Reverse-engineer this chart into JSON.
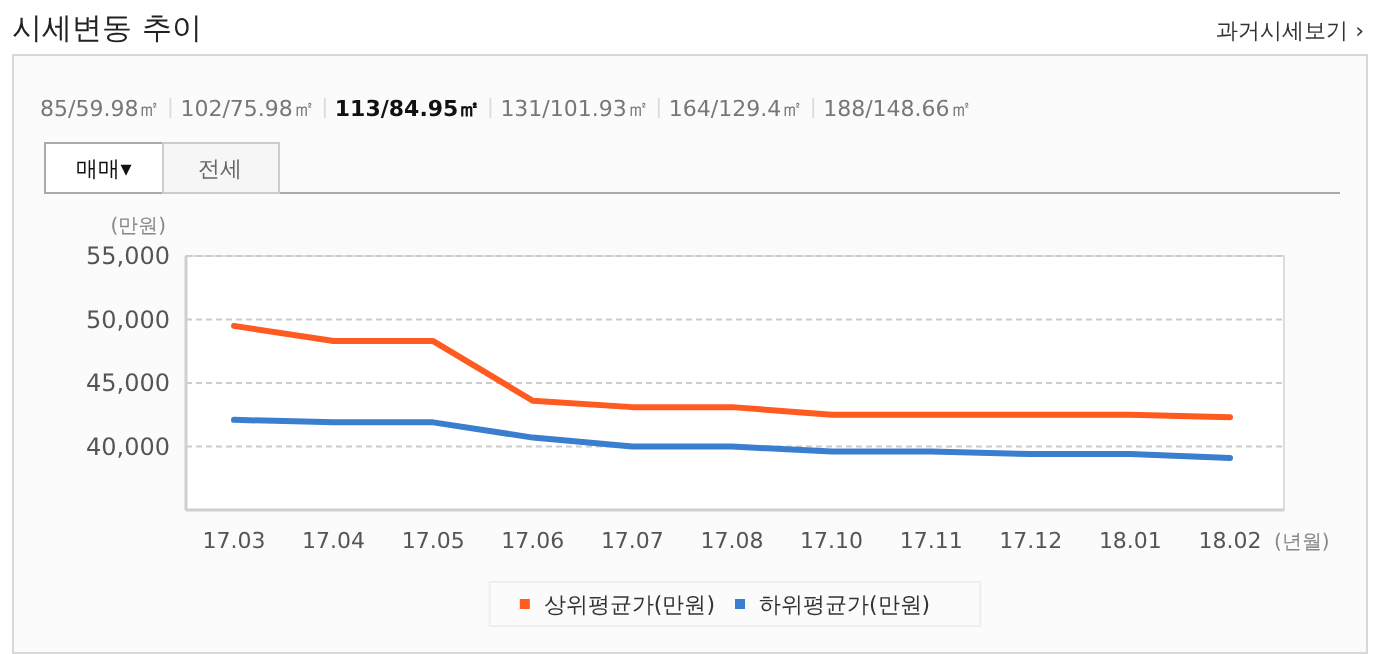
{
  "chart_data": {
    "type": "line",
    "title": "시세변동 추이",
    "ylabel": "(만원)",
    "xlabel": "(년월)",
    "annotations": [
      "과거시세보기 ›",
      "85/59.98㎡",
      "102/75.98㎡",
      "113/84.95㎡",
      "131/101.93㎡",
      "164/129.4㎡",
      "188/148.66㎡",
      "매매▾",
      "전세"
    ],
    "categories": [
      "17.03",
      "17.04",
      "17.05",
      "17.06",
      "17.07",
      "17.08",
      "17.10",
      "17.11",
      "17.12",
      "18.01",
      "18.02"
    ],
    "series": [
      {
        "name": "상위평균가(만원)",
        "color": "#ff5a1f",
        "values": [
          49500,
          48300,
          48300,
          43600,
          43100,
          43100,
          42500,
          42500,
          42500,
          42500,
          42300
        ]
      },
      {
        "name": "하위평균가(만원)",
        "color": "#3a7fcf",
        "values": [
          42100,
          41900,
          41900,
          40700,
          40000,
          40000,
          39600,
          39600,
          39400,
          39400,
          39100
        ]
      }
    ],
    "ylim": [
      35000,
      55000
    ],
    "yticks": [
      {
        "value": 40000,
        "label": "40,000"
      },
      {
        "value": 45000,
        "label": "45,000"
      },
      {
        "value": 50000,
        "label": "50,000"
      },
      {
        "value": 55000,
        "label": "55,000"
      }
    ],
    "grid": "y",
    "legend": "bottom",
    "marker": "none",
    "line_style": "solid"
  }
}
